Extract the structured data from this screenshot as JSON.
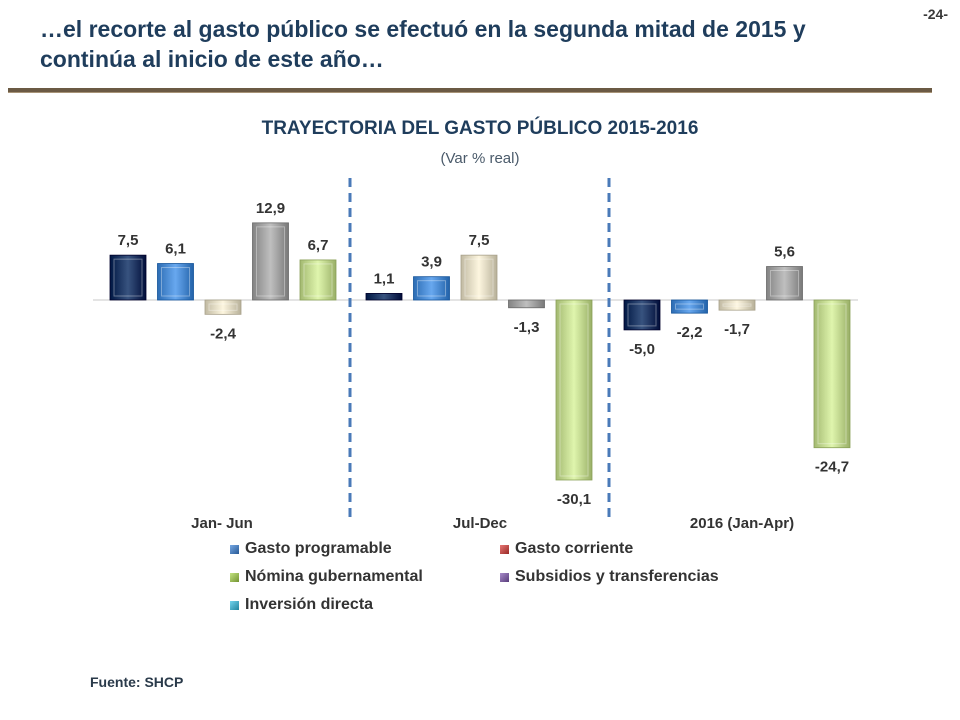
{
  "slide_number": "-24-",
  "headline": "…el recorte al gasto público se efectuó en la segunda mitad de 2015 y continúa al inicio de este año…",
  "source": "Fuente: SHCP",
  "colors": {
    "gasto_programable": "#1f3a66",
    "gasto_corriente": "#c0504d",
    "nomina": "#c6dc94",
    "subsidios": "#8064a2",
    "inversion": "#4f8fd6",
    "group4": "#e4ddc6",
    "group5": "#a6a6a6"
  },
  "legend": [
    {
      "label": "Gasto programable",
      "color": "#4f81bd"
    },
    {
      "label": "Gasto corriente",
      "color": "#c0504d"
    },
    {
      "label": "Nómina gubernamental",
      "color": "#9bbb59"
    },
    {
      "label": "Subsidios y transferencias",
      "color": "#8064a2"
    },
    {
      "label": "Inversión directa",
      "color": "#4bacc6"
    }
  ],
  "chart_data": {
    "type": "bar",
    "title": "TRAYECTORIA DEL GASTO PÚBLICO 2015-2016",
    "subtitle": "(Var % real)",
    "categories": [
      "Jan- Jun",
      "Jul-Dec",
      "2016 (Jan-Apr)"
    ],
    "series": [
      {
        "values": [
          7.5,
          1.1,
          -5.0
        ],
        "labels": [
          "7,5",
          "1,1",
          "-5,0"
        ],
        "color": "#1f3a66"
      },
      {
        "values": [
          6.1,
          3.9,
          -2.2
        ],
        "labels": [
          "6,1",
          "3,9",
          "-2,2"
        ],
        "color": "#4f8fd6"
      },
      {
        "values": [
          -2.4,
          7.5,
          -1.7
        ],
        "labels": [
          "-2,4",
          "7,5",
          "-1,7"
        ],
        "color": "#e4ddc6"
      },
      {
        "values": [
          12.9,
          -1.3,
          5.6
        ],
        "labels": [
          "12,9",
          "-1,3",
          "5,6"
        ],
        "color": "#a6a6a6"
      },
      {
        "values": [
          6.7,
          -30.1,
          -24.7
        ],
        "labels": [
          "6,7",
          "-30,1",
          "-24,7"
        ],
        "color": "#c6dc94"
      }
    ],
    "ylim": [
      -31,
      15
    ],
    "grid": false,
    "legend_position": "bottom"
  }
}
